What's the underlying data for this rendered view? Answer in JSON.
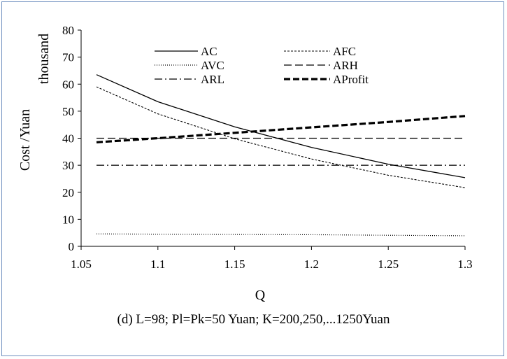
{
  "chart_data": {
    "type": "line",
    "caption": "(d) L=98; Pl=Pk=50 Yuan; K=200,250,...1250Yuan",
    "xlabel": "Q",
    "ylabel": "Cost /Yuan",
    "ylabel_unit": "thousand",
    "xlim": [
      1.05,
      1.3
    ],
    "ylim": [
      0,
      80
    ],
    "xticks": [
      "1.05",
      "1.1",
      "1.15",
      "1.2",
      "1.25",
      "1.3"
    ],
    "yticks": [
      "0",
      "10",
      "20",
      "30",
      "40",
      "50",
      "60",
      "70",
      "80"
    ],
    "grid": false,
    "legend": "top, inside, two columns",
    "x": [
      1.06,
      1.1,
      1.15,
      1.2,
      1.25,
      1.3
    ],
    "series": [
      {
        "name": "AC",
        "style": "solid",
        "values": [
          63.5,
          53.5,
          44.2,
          36.6,
          30.4,
          25.4
        ]
      },
      {
        "name": "AFC",
        "style": "short-dash",
        "values": [
          59,
          49,
          39.8,
          32.3,
          26.3,
          21.7
        ]
      },
      {
        "name": "AVC",
        "style": "dotted",
        "values": [
          4.6,
          4.5,
          4.4,
          4.3,
          4.1,
          3.9
        ]
      },
      {
        "name": "ARH",
        "style": "long-dash",
        "values": [
          40,
          40,
          40,
          40,
          40,
          40
        ]
      },
      {
        "name": "ARL",
        "style": "dash-dot",
        "values": [
          30,
          30,
          30,
          30,
          30,
          30
        ]
      },
      {
        "name": "AProfit",
        "style": "bold-dash",
        "values": [
          38.5,
          40,
          42,
          44,
          46,
          48.2
        ]
      }
    ]
  }
}
